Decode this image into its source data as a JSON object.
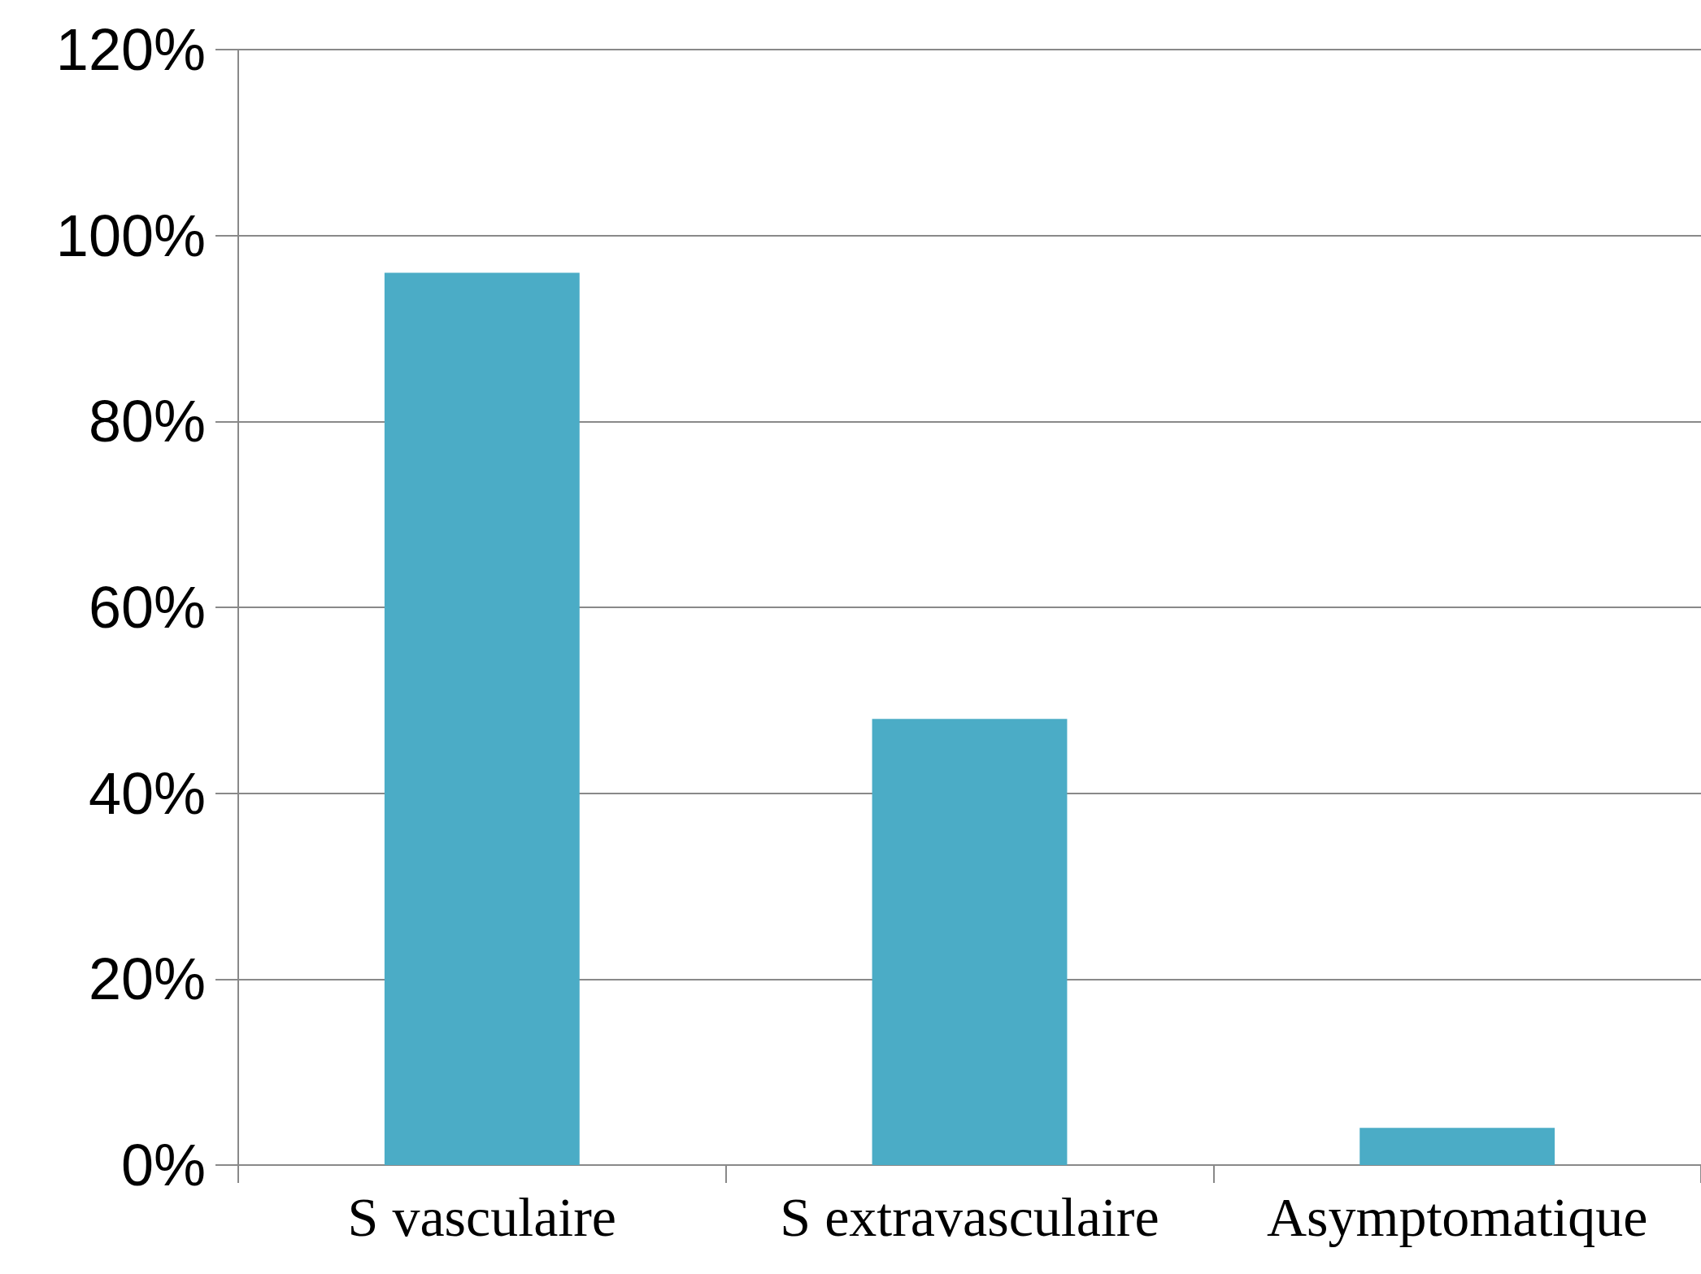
{
  "chart_data": {
    "type": "bar",
    "categories": [
      "S vasculaire",
      "S extravasculaire",
      "Asymptomatique"
    ],
    "values": [
      96,
      48,
      4
    ],
    "color": "#4bacc6",
    "ylim": [
      0,
      120
    ],
    "yticks": [
      {
        "value": 0,
        "label": "0%"
      },
      {
        "value": 20,
        "label": "20%"
      },
      {
        "value": 40,
        "label": "40%"
      },
      {
        "value": 60,
        "label": "60%"
      },
      {
        "value": 80,
        "label": "80%"
      },
      {
        "value": 100,
        "label": "100%"
      },
      {
        "value": 120,
        "label": "120%"
      }
    ],
    "grid": "y"
  }
}
